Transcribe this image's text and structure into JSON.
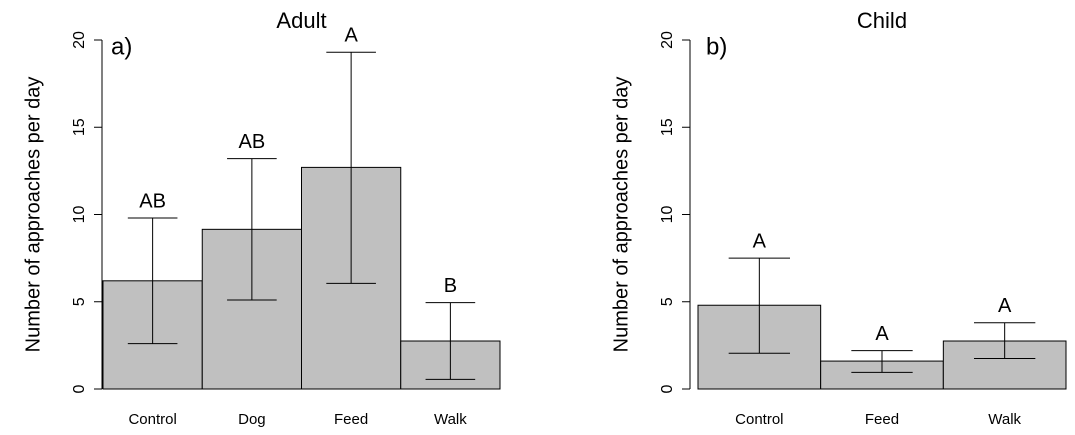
{
  "chart_data": [
    {
      "type": "bar",
      "title": "Adult",
      "panel_label": "a)",
      "ylabel": "Number of approaches per day",
      "categories": [
        "Control",
        "Dog",
        "Feed",
        "Walk"
      ],
      "values": [
        6.2,
        9.15,
        12.7,
        2.75
      ],
      "lower": [
        2.6,
        5.1,
        6.05,
        0.55
      ],
      "upper": [
        9.8,
        13.2,
        19.3,
        4.95
      ],
      "annotations": [
        "AB",
        "AB",
        "A",
        "B"
      ],
      "color": "#c0c0c0",
      "ylim": [
        0,
        20
      ],
      "yticks": [
        0,
        5,
        10,
        15,
        20
      ]
    },
    {
      "type": "bar",
      "title": "Child",
      "panel_label": "b)",
      "ylabel": "Number of approaches per day",
      "categories": [
        "Control",
        "Feed",
        "Walk"
      ],
      "values": [
        4.8,
        1.6,
        2.75
      ],
      "lower": [
        2.05,
        0.95,
        1.75
      ],
      "upper": [
        7.5,
        2.2,
        3.8
      ],
      "annotations": [
        "A",
        "A",
        "A"
      ],
      "color": "#c0c0c0",
      "ylim": [
        0,
        20
      ],
      "yticks": [
        0,
        5,
        10,
        15,
        20
      ]
    }
  ]
}
